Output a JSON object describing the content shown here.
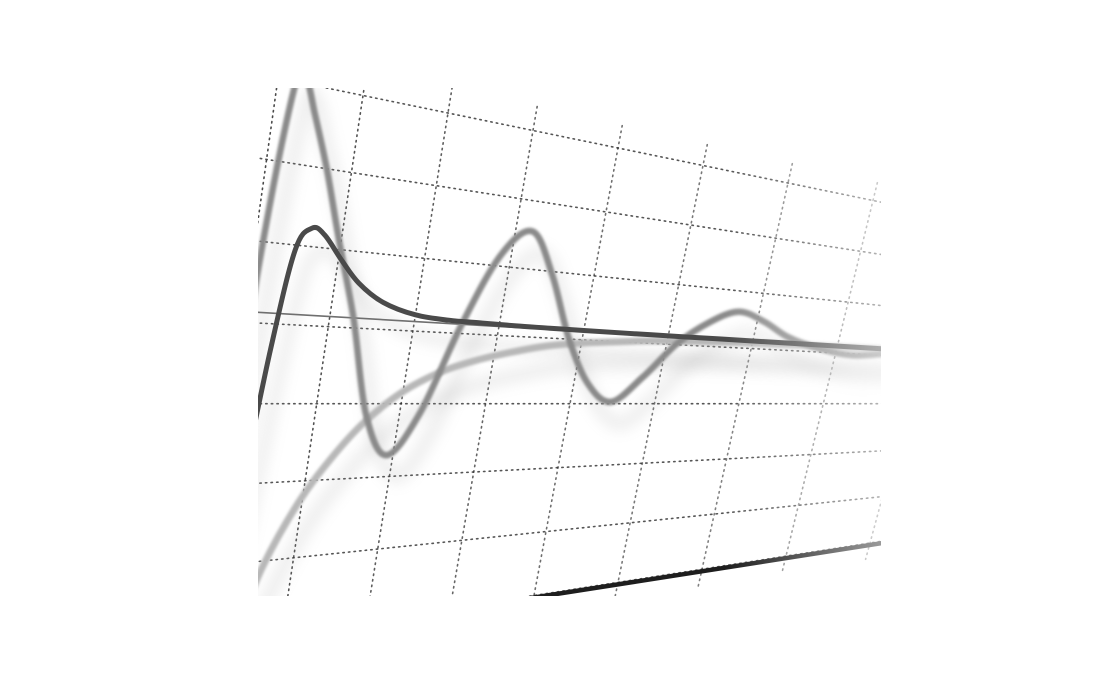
{
  "chart_data": {
    "type": "line",
    "title": "",
    "xlabel": "",
    "ylabel": "",
    "grid": true,
    "legend": "none",
    "x_domain": [
      0,
      10
    ],
    "y_domain": [
      -1.8,
      1.25
    ],
    "baseline": 0,
    "series": [
      {
        "style": "dark",
        "color": "#4a4a4a",
        "x": [
          0,
          0.15,
          0.3,
          0.45,
          0.6,
          0.8,
          1.0,
          1.3,
          1.6,
          2.0,
          2.5,
          3.0,
          3.5,
          4.0,
          4.5,
          5.0,
          6.0,
          7.0,
          8.0,
          9.0,
          10.0
        ],
        "y": [
          -1.7,
          -1.55,
          -1.0,
          -0.2,
          0.35,
          0.48,
          0.45,
          0.32,
          0.2,
          0.1,
          0.04,
          0.02,
          0.015,
          0.01,
          0.008,
          0.006,
          0.004,
          0.003,
          0.002,
          0.001,
          0.0
        ]
      },
      {
        "style": "medium",
        "color": "#8a8a8a",
        "x": [
          0,
          0.1,
          0.25,
          0.4,
          0.6,
          0.9,
          1.2,
          1.6,
          2.0,
          2.4,
          2.8,
          3.2,
          3.6,
          4.0,
          4.4,
          4.8,
          5.2,
          5.6,
          6.0,
          6.4,
          6.8,
          7.2,
          7.6,
          8.0,
          8.5,
          9.0,
          9.5,
          10.0
        ],
        "y": [
          -1.6,
          0.2,
          1.2,
          1.28,
          1.1,
          0.8,
          0.45,
          0.0,
          -0.55,
          -0.8,
          -0.55,
          0.0,
          0.45,
          0.62,
          0.35,
          -0.05,
          -0.35,
          -0.48,
          -0.3,
          -0.05,
          0.12,
          0.22,
          0.16,
          0.05,
          -0.03,
          -0.07,
          -0.04,
          0.0
        ]
      },
      {
        "style": "light",
        "color": "#b8b8b8",
        "x": [
          0.5,
          0.8,
          1.2,
          1.6,
          2.0,
          2.5,
          3.0,
          3.5,
          4.0,
          4.5,
          5.0,
          5.5,
          6.0,
          6.5,
          7.0,
          7.5,
          8.0,
          9.0,
          10.0
        ],
        "y": [
          -1.8,
          -1.4,
          -1.05,
          -0.8,
          -0.6,
          -0.42,
          -0.3,
          -0.22,
          -0.16,
          -0.11,
          -0.08,
          -0.06,
          -0.04,
          -0.03,
          -0.02,
          -0.015,
          -0.01,
          -0.005,
          0.0
        ]
      }
    ]
  }
}
